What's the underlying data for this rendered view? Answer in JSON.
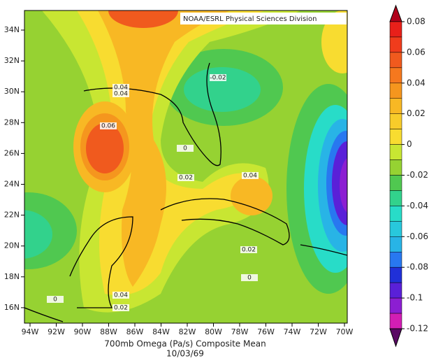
{
  "map": {
    "credit": "NOAA/ESRL Physical Sciences Division",
    "caption": [
      "700mb Omega (Pa/s) Composite Mean",
      "10/03/69"
    ],
    "x_ticks": [
      "94W",
      "92W",
      "90W",
      "88W",
      "86W",
      "84W",
      "82W",
      "80W",
      "78W",
      "76W",
      "74W",
      "72W",
      "70W"
    ],
    "y_ticks": [
      "34N",
      "32N",
      "30N",
      "28N",
      "26N",
      "24N",
      "22N",
      "20N",
      "18N",
      "16N"
    ],
    "colorbar_ticks": [
      "0.08",
      "0.06",
      "0.04",
      "0.02",
      "0",
      "-0.02",
      "-0.04",
      "-0.06",
      "-0.08",
      "-0.1",
      "-0.12"
    ],
    "contour_labels": [
      "0.04",
      "0.04",
      "-0.02",
      "0.06",
      "0",
      "0.02",
      "0.04",
      "0.02",
      "0",
      "0.04",
      "0.02",
      "0"
    ]
  }
}
